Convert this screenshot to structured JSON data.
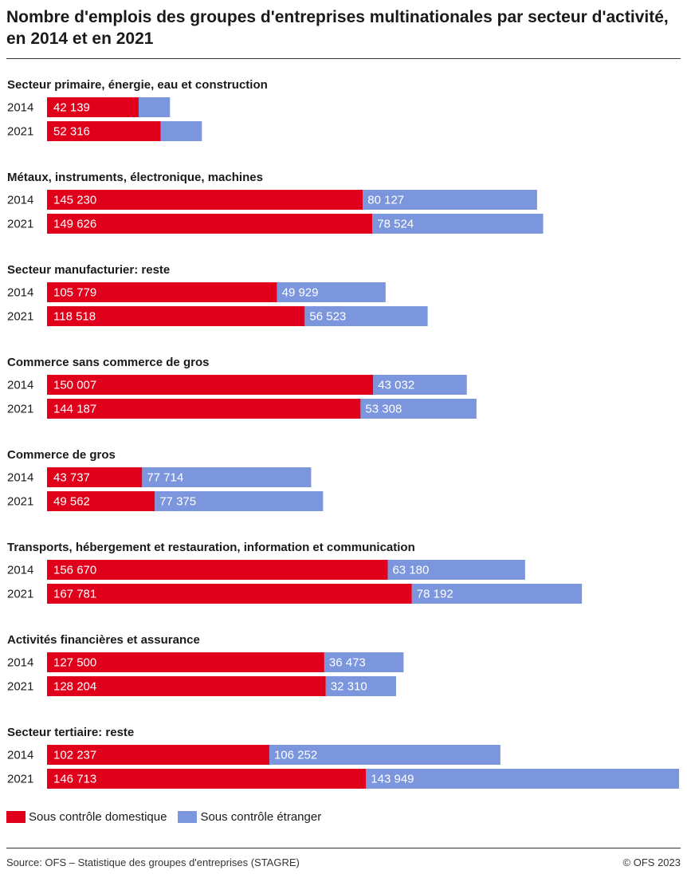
{
  "chart_data": {
    "type": "bar",
    "orientation": "horizontal",
    "stacked": true,
    "title": "Nombre d'emplois des groupes d'entreprises multinationales par secteur d'activité, en 2014 et en 2021",
    "colors": {
      "domestic": "#e0001b",
      "foreign": "#7b96dd"
    },
    "series": [
      {
        "name": "Sous contrôle domestique",
        "key": "domestic"
      },
      {
        "name": "Sous contrôle étranger",
        "key": "foreign"
      }
    ],
    "xlim": [
      0,
      291000
    ],
    "grid": false,
    "legend_position": "bottom-left",
    "groups": [
      {
        "category": "Secteur primaire, énergie, eau et construction",
        "rows": [
          {
            "year": "2014",
            "domestic": 42139,
            "foreign": 14400,
            "domestic_label": "42 139",
            "foreign_label": ""
          },
          {
            "year": "2021",
            "domestic": 52316,
            "foreign": 18900,
            "domestic_label": "52 316",
            "foreign_label": ""
          }
        ]
      },
      {
        "category": "Métaux, instruments, électronique, machines",
        "rows": [
          {
            "year": "2014",
            "domestic": 145230,
            "foreign": 80127,
            "domestic_label": "145 230",
            "foreign_label": "80 127"
          },
          {
            "year": "2021",
            "domestic": 149626,
            "foreign": 78524,
            "domestic_label": "149 626",
            "foreign_label": "78 524"
          }
        ]
      },
      {
        "category": "Secteur manufacturier: reste",
        "rows": [
          {
            "year": "2014",
            "domestic": 105779,
            "foreign": 49929,
            "domestic_label": "105 779",
            "foreign_label": "49 929"
          },
          {
            "year": "2021",
            "domestic": 118518,
            "foreign": 56523,
            "domestic_label": "118 518",
            "foreign_label": "56 523"
          }
        ]
      },
      {
        "category": "Commerce sans commerce de gros",
        "rows": [
          {
            "year": "2014",
            "domestic": 150007,
            "foreign": 43032,
            "domestic_label": "150 007",
            "foreign_label": "43 032"
          },
          {
            "year": "2021",
            "domestic": 144187,
            "foreign": 53308,
            "domestic_label": "144 187",
            "foreign_label": "53 308"
          }
        ]
      },
      {
        "category": "Commerce de gros",
        "rows": [
          {
            "year": "2014",
            "domestic": 43737,
            "foreign": 77714,
            "domestic_label": "43 737",
            "foreign_label": "77 714"
          },
          {
            "year": "2021",
            "domestic": 49562,
            "foreign": 77375,
            "domestic_label": "49 562",
            "foreign_label": "77 375"
          }
        ]
      },
      {
        "category": "Transports, hébergement et restauration, information et communication",
        "rows": [
          {
            "year": "2014",
            "domestic": 156670,
            "foreign": 63180,
            "domestic_label": "156 670",
            "foreign_label": "63 180"
          },
          {
            "year": "2021",
            "domestic": 167781,
            "foreign": 78192,
            "domestic_label": "167 781",
            "foreign_label": "78 192"
          }
        ]
      },
      {
        "category": "Activités financières et assurance",
        "rows": [
          {
            "year": "2014",
            "domestic": 127500,
            "foreign": 36473,
            "domestic_label": "127 500",
            "foreign_label": "36 473"
          },
          {
            "year": "2021",
            "domestic": 128204,
            "foreign": 32310,
            "domestic_label": "128 204",
            "foreign_label": "32 310"
          }
        ]
      },
      {
        "category": "Secteur tertiaire: reste",
        "rows": [
          {
            "year": "2014",
            "domestic": 102237,
            "foreign": 106252,
            "domestic_label": "102 237",
            "foreign_label": "106 252"
          },
          {
            "year": "2021",
            "domestic": 146713,
            "foreign": 143949,
            "domestic_label": "146 713",
            "foreign_label": "143 949"
          }
        ]
      }
    ]
  },
  "footer": {
    "source": "Source: OFS – Statistique des groupes d'entreprises (STAGRE)",
    "copyright": "© OFS 2023"
  }
}
